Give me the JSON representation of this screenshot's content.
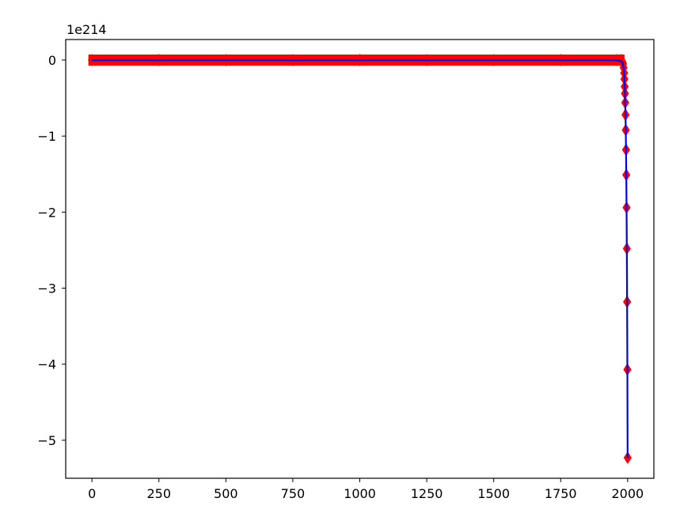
{
  "chart_data": {
    "type": "line",
    "title": "",
    "xlabel": "",
    "ylabel": "",
    "offset_text": "1e214",
    "xlim": [
      -98,
      2098
    ],
    "ylim": [
      -5.5,
      0.27
    ],
    "x_ticks": [
      0,
      250,
      500,
      750,
      1000,
      1250,
      1500,
      1750,
      2000
    ],
    "x_tick_labels": [
      "0",
      "250",
      "500",
      "750",
      "1000",
      "1250",
      "1500",
      "1750",
      "2000"
    ],
    "y_ticks": [
      0,
      -1,
      -2,
      -3,
      -4,
      -5
    ],
    "y_tick_labels": [
      "0",
      "−1",
      "−2",
      "−3",
      "−4",
      "−5"
    ],
    "grid": false,
    "series": [
      {
        "style": "markers",
        "marker": "thin-diamond",
        "color": "#ff0000",
        "x": [
          0,
          250,
          500,
          750,
          1000,
          1250,
          1500,
          1750,
          1960,
          1975,
          1980,
          1983,
          1985,
          1987,
          1988,
          1989,
          1990,
          1991,
          1992,
          1993,
          1994,
          1995,
          1996,
          1997,
          1998,
          1999
        ],
        "y": [
          0,
          0,
          0,
          0,
          0,
          0,
          0,
          0,
          0,
          0,
          -0.02,
          -0.05,
          -0.1,
          -0.17,
          -0.25,
          -0.35,
          -0.44,
          -0.56,
          -0.72,
          -0.92,
          -1.18,
          -1.51,
          -1.94,
          -2.48,
          -3.18,
          -4.07
        ]
      },
      {
        "style": "markers",
        "marker": "thin-diamond",
        "color": "#ff0000",
        "x": [
          2000
        ],
        "y": [
          -5.23
        ]
      },
      {
        "style": "line",
        "color": "#0000ff",
        "x": [
          0,
          1960,
          1980,
          1985,
          1988,
          1990,
          1992,
          1993,
          1994,
          1995,
          1996,
          1997,
          1998,
          1999,
          2000
        ],
        "y": [
          0,
          0,
          -0.02,
          -0.1,
          -0.25,
          -0.44,
          -0.72,
          -0.92,
          -1.18,
          -1.51,
          -1.94,
          -2.48,
          -3.18,
          -4.07,
          -5.23
        ]
      }
    ]
  }
}
